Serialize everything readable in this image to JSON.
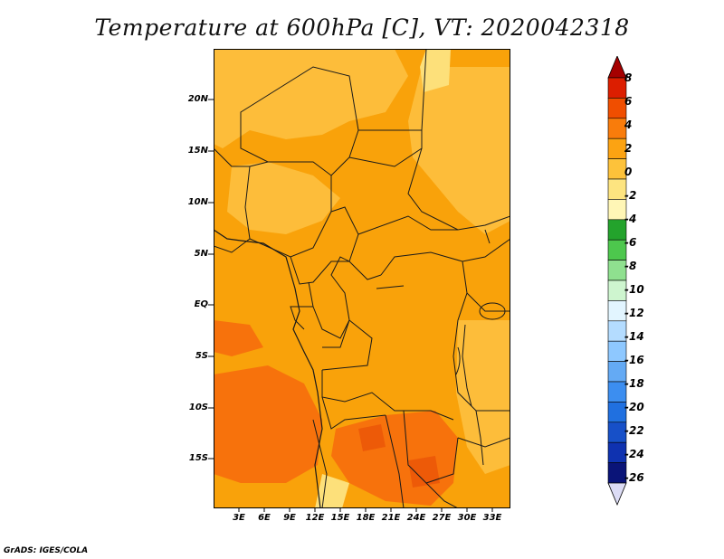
{
  "title": "Temperature at 600hPa [C], VT: 2020042318",
  "credit": "GrADS: IGES/COLA",
  "axes": {
    "y_labels": [
      "20N",
      "15N",
      "10N",
      "5N",
      "EQ",
      "5S",
      "10S",
      "15S"
    ],
    "x_labels": [
      "3E",
      "6E",
      "9E",
      "12E",
      "15E",
      "18E",
      "21E",
      "24E",
      "27E",
      "30E",
      "33E"
    ]
  },
  "colorbar": {
    "labels": [
      "8",
      "6",
      "4",
      "2",
      "0",
      "-2",
      "-4",
      "-6",
      "-8",
      "-10",
      "-12",
      "-14",
      "-16",
      "-18",
      "-20",
      "-22",
      "-24",
      "-26"
    ],
    "colors": [
      "#a50000",
      "#dc1e00",
      "#f04e00",
      "#f97c0b",
      "#fca312",
      "#fdc23a",
      "#fde480",
      "#fff6b6",
      "#23a32c",
      "#4dc74d",
      "#8fe08f",
      "#cef5cf",
      "#e2f5ff",
      "#b4dcff",
      "#8ec8ff",
      "#64aaf4",
      "#3c8ef0",
      "#2070e0",
      "#1750c8",
      "#0f32b0",
      "#0a1478",
      "#dcdcf5"
    ]
  },
  "field_colors": {
    "warm_2_4": "#f9a20a",
    "warm_0_2": "#fdbd3a",
    "warm_4_6": "#f7720c",
    "cool_m2_0": "#fde07a"
  }
}
